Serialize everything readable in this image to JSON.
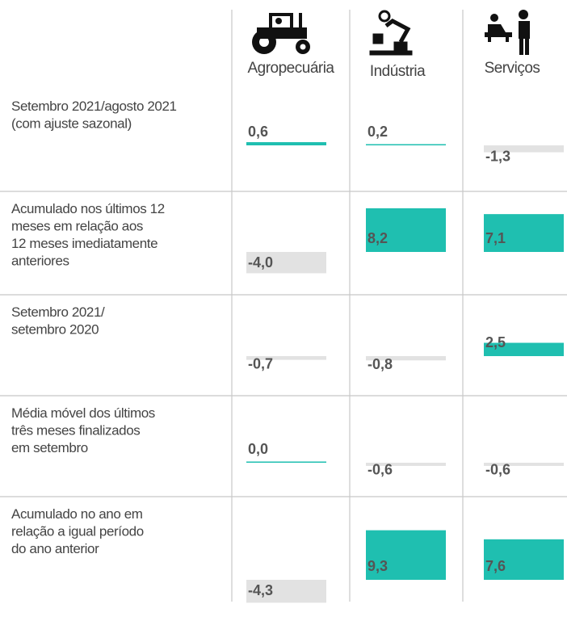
{
  "chart_data": {
    "type": "bar",
    "categories": [
      [
        "Setembro 2021/agosto 2021",
        "(com ajuste sazonal)"
      ],
      [
        "Acumulado nos últimos 12",
        "meses em relação aos",
        "12 meses imediatamente",
        "anteriores"
      ],
      [
        "Setembro 2021/",
        "setembro 2020"
      ],
      [
        "Média móvel dos últimos",
        "três meses finalizados",
        "em setembro"
      ],
      [
        "Acumulado no ano em",
        "relação a igual período",
        "do ano anterior"
      ]
    ],
    "positive_color": "#1fbfb0",
    "negative_color": "#e2e2e2",
    "series": [
      {
        "name": "Agropecuária",
        "values": [
          0.6,
          -4.0,
          -0.7,
          0.0,
          -4.3
        ],
        "value_labels": [
          "0,6",
          "-4,0",
          "-0,7",
          "0,0",
          "-4,3"
        ]
      },
      {
        "name": "Indústria",
        "values": [
          0.2,
          8.2,
          -0.8,
          -0.6,
          9.3
        ],
        "value_labels": [
          "0,2",
          "8,2",
          "-0,8",
          "-0,6",
          "9,3"
        ]
      },
      {
        "name": "Serviços",
        "values": [
          -1.3,
          7.1,
          2.5,
          -0.6,
          7.6
        ],
        "value_labels": [
          "-1,3",
          "7,1",
          "2,5",
          "-0,6",
          "7,6"
        ]
      }
    ]
  }
}
